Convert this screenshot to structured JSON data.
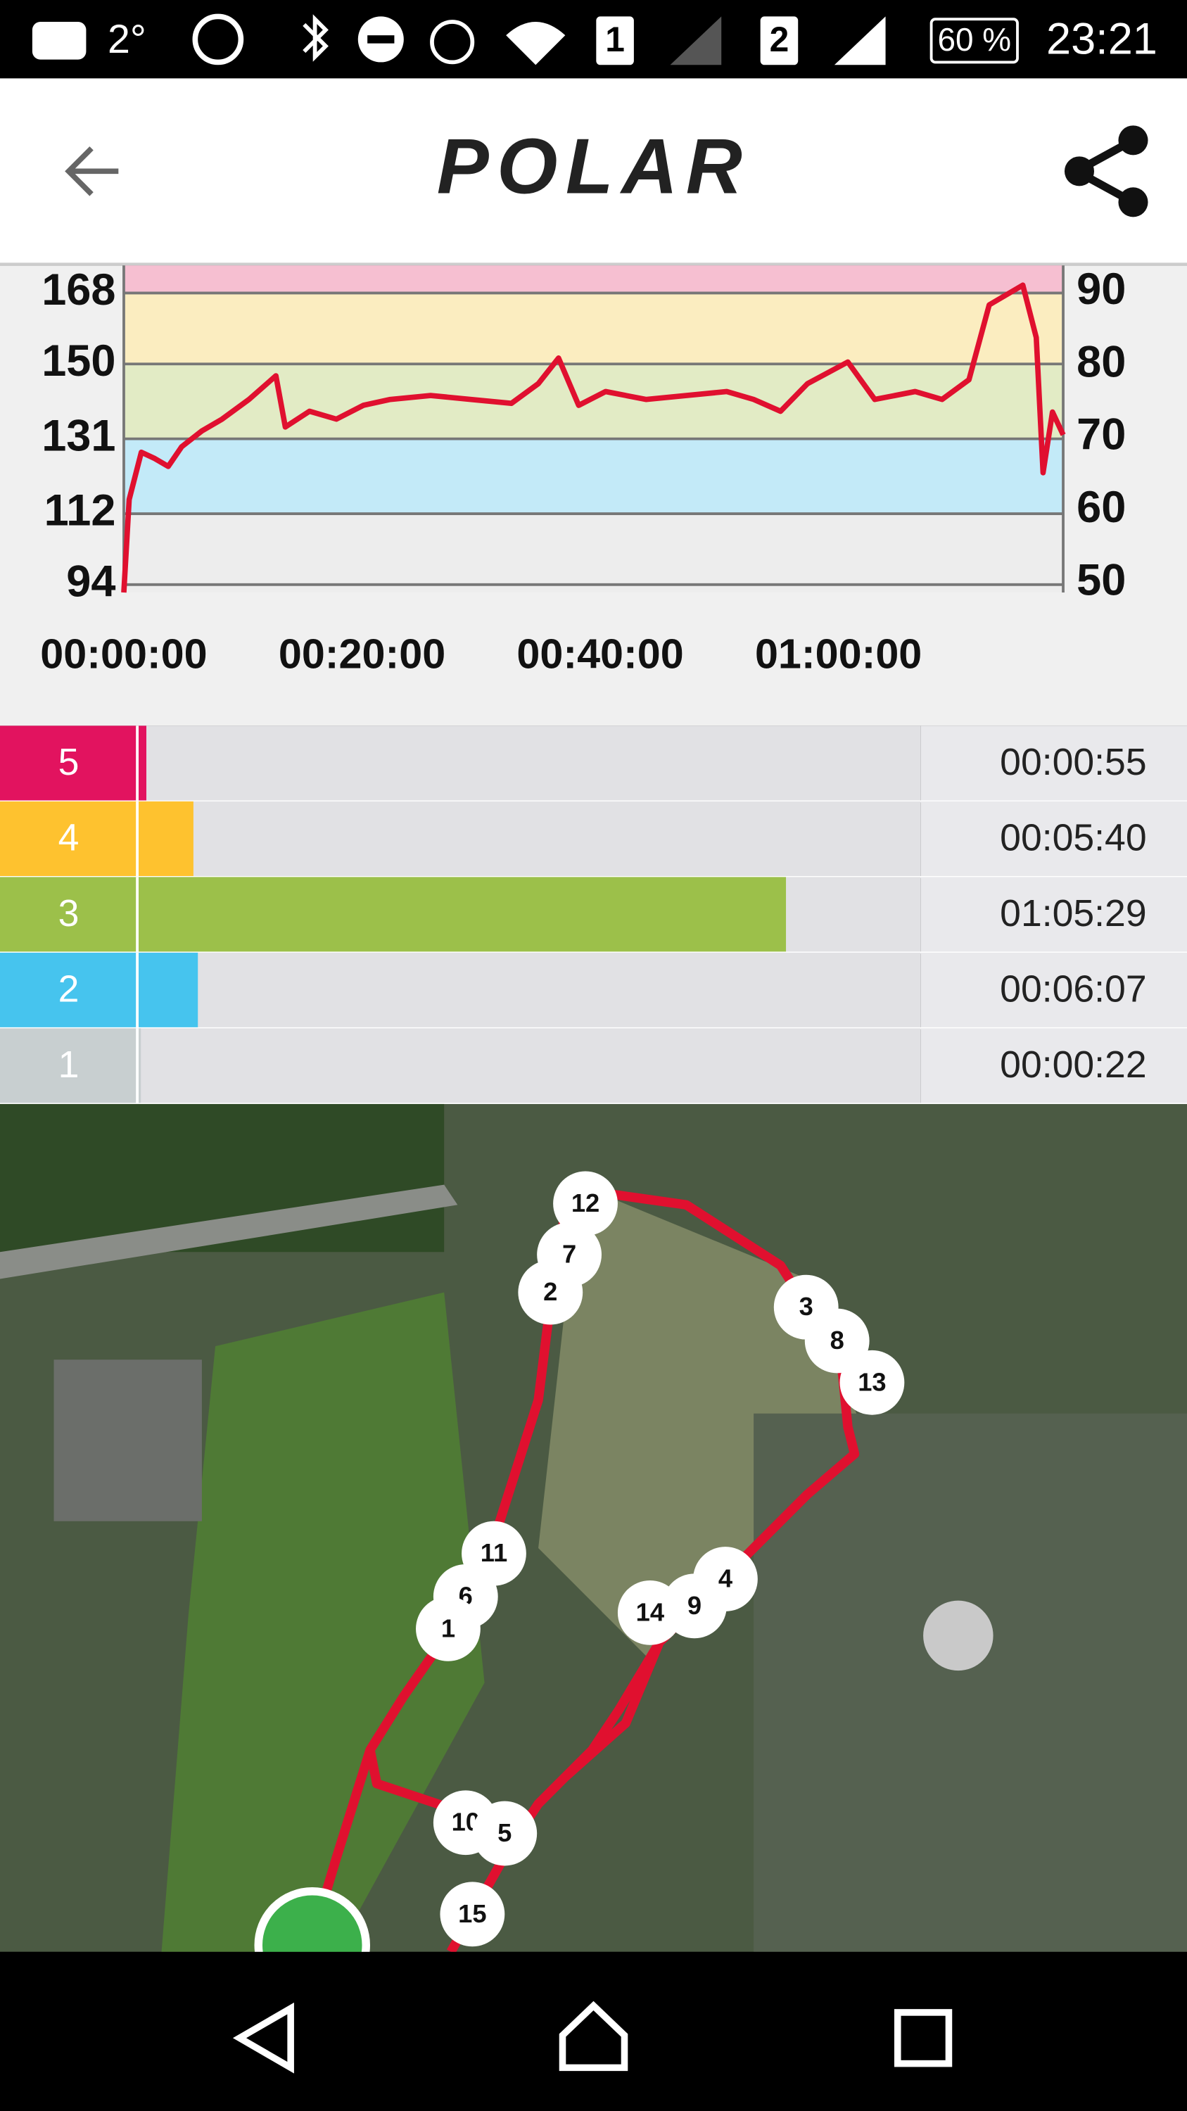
{
  "status_bar": {
    "temperature": "2°",
    "sim1": "1",
    "sim2": "2",
    "battery": "60 %",
    "time": "23:21"
  },
  "header": {
    "logo": "POLAR"
  },
  "chart_data": {
    "type": "line",
    "x": [
      0,
      0.45,
      1.47,
      2.6,
      3.73,
      4.86,
      6.55,
      8.25,
      10.51,
      12.77,
      13.56,
      15.59,
      17.85,
      20.11,
      22.37,
      25.76,
      29.15,
      32.54,
      34.8,
      36.5,
      38.19,
      40.45,
      43.84,
      47.23,
      50.62,
      52.88,
      55.14,
      57.4,
      60.79,
      63.05,
      66.44,
      68.7,
      70.96,
      72.66,
      75.48,
      76.61,
      77.18,
      77.97,
      78.87
    ],
    "series": [
      {
        "color": "#e0102f",
        "values": [
          92,
          115.6,
          127.6,
          126,
          124,
          129,
          133,
          136,
          141,
          147,
          134,
          138,
          136,
          139.5,
          141,
          142,
          141,
          140,
          145,
          151.5,
          139.5,
          143,
          141,
          142,
          143,
          141,
          138,
          145,
          150.5,
          141,
          143,
          141,
          146,
          165,
          170,
          156.7,
          122.4,
          137.8,
          132
        ]
      }
    ],
    "xlim": [
      0,
      78.87
    ],
    "xticks": [
      {
        "value": 0,
        "label": "00:00:00"
      },
      {
        "value": 20,
        "label": "00:20:00"
      },
      {
        "value": 40,
        "label": "00:40:00"
      },
      {
        "value": 60,
        "label": "01:00:00"
      }
    ],
    "ylim": [
      92,
      175
    ],
    "yticks": [
      94,
      112,
      131,
      150,
      168
    ],
    "y2lim": [
      48.7,
      93.7
    ],
    "y2ticks": [
      50,
      60,
      70,
      80,
      90
    ],
    "band_colors": [
      "#ededed",
      "#c3eaf8",
      "#e2ebc5",
      "#fbedc0",
      "#f6bfd1"
    ],
    "grid": true
  },
  "zones": {
    "xlim": [
      0,
      4744
    ],
    "rows": [
      {
        "label": "5",
        "duration": "00:00:55",
        "color": "#e2135f"
      },
      {
        "label": "4",
        "duration": "00:05:40",
        "color": "#fec22f"
      },
      {
        "label": "3",
        "duration": "01:05:29",
        "color": "#9cc04a"
      },
      {
        "label": "2",
        "duration": "00:06:07",
        "color": "#46c4ee"
      },
      {
        "label": "1",
        "duration": "00:00:22",
        "color": "#c8cfd0"
      }
    ]
  },
  "map": {
    "laps": [
      "12",
      "7",
      "2",
      "3",
      "8",
      "13",
      "11",
      "6",
      "1",
      "14",
      "9",
      "4",
      "10",
      "5",
      "15"
    ]
  }
}
